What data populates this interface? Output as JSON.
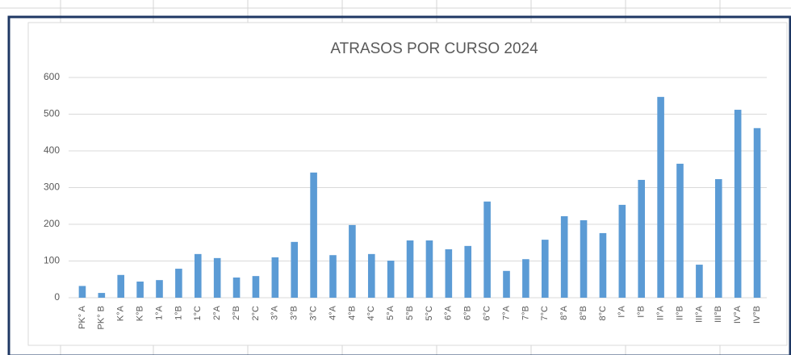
{
  "chart_data": {
    "type": "bar",
    "title": "ATRASOS POR CURSO 2024",
    "categories": [
      "PK° A",
      "PK° B",
      "K°A",
      "K°B",
      "1°A",
      "1°B",
      "1°C",
      "2°A",
      "2°B",
      "2°C",
      "3°A",
      "3°B",
      "3°C",
      "4°A",
      "4°B",
      "4°C",
      "5°A",
      "5°B",
      "5°C",
      "6°A",
      "6°B",
      "6°C",
      "7°A",
      "7°B",
      "7°C",
      "8°A",
      "8°B",
      "8°C",
      "I°A",
      "I°B",
      "II°A",
      "II°B",
      "III°A",
      "III°B",
      "IV°A",
      "IV°B"
    ],
    "values": [
      32,
      13,
      62,
      44,
      48,
      79,
      119,
      108,
      55,
      59,
      110,
      152,
      341,
      116,
      198,
      119,
      101,
      156,
      156,
      132,
      141,
      262,
      73,
      105,
      158,
      222,
      211,
      176,
      253,
      321,
      547,
      365,
      90,
      323,
      512,
      462
    ],
    "color": "#5b9bd5",
    "ylim": [
      0,
      600
    ],
    "yticks": [
      0,
      100,
      200,
      300,
      400,
      500,
      600
    ],
    "grid": true
  }
}
